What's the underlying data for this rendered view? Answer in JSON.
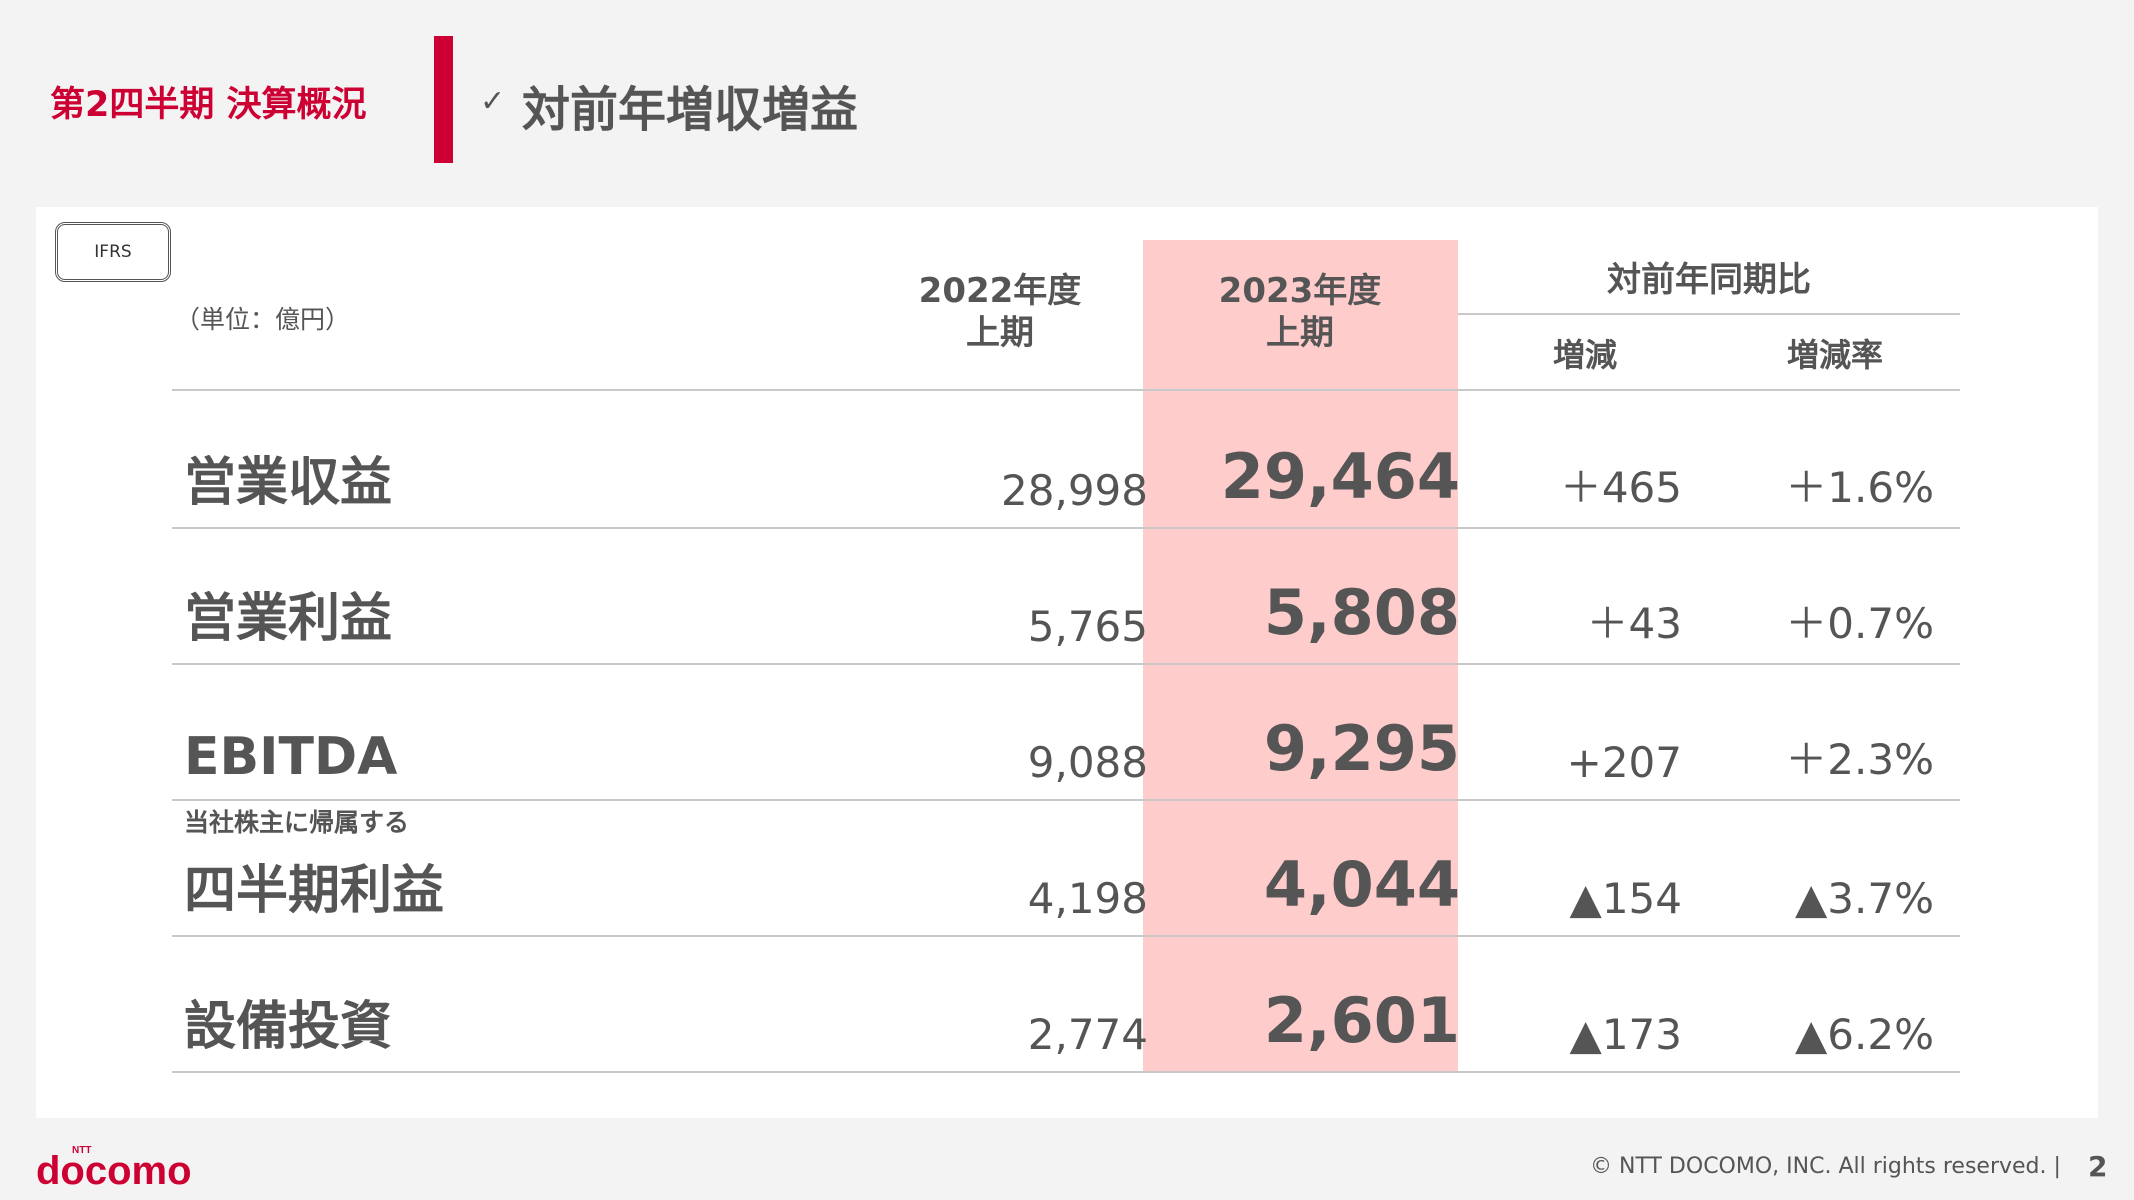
{
  "header": {
    "section": "第2四半期 決算概況",
    "check": "✓",
    "title": "対前年増収増益"
  },
  "badge": "IFRS",
  "unit": "（単位：億円）",
  "columns": {
    "prev_year": "2022年度",
    "prev_period": "上期",
    "curr_year": "2023年度",
    "curr_period": "上期",
    "group": "対前年同期比",
    "change": "増減",
    "rate": "増減率"
  },
  "rows": [
    {
      "label_sub": "",
      "label": "営業収益",
      "v2022": "28,998",
      "v2023": "29,464",
      "change": "＋465",
      "rate": "＋1.6%"
    },
    {
      "label_sub": "",
      "label": "営業利益",
      "v2022": "5,765",
      "v2023": "5,808",
      "change": "＋43",
      "rate": "＋0.7%"
    },
    {
      "label_sub": "",
      "label": "EBITDA",
      "v2022": "9,088",
      "v2023": "9,295",
      "change": "+207",
      "rate": "＋2.3%"
    },
    {
      "label_sub": "当社株主に帰属する",
      "label": "四半期利益",
      "v2022": "4,198",
      "v2023": "4,044",
      "change": "▲154",
      "rate": "▲3.7%"
    },
    {
      "label_sub": "",
      "label": "設備投資",
      "v2022": "2,774",
      "v2023": "2,601",
      "change": "▲173",
      "rate": "▲6.2%"
    }
  ],
  "footer": {
    "logo_small": "NTT",
    "logo": "docomo",
    "copyright": "© NTT DOCOMO, INC.   All rights reserved.  |",
    "page": "2"
  },
  "colors": {
    "brand_red": "#cc0033",
    "highlight": "#ffcccc",
    "text": "#555555"
  }
}
